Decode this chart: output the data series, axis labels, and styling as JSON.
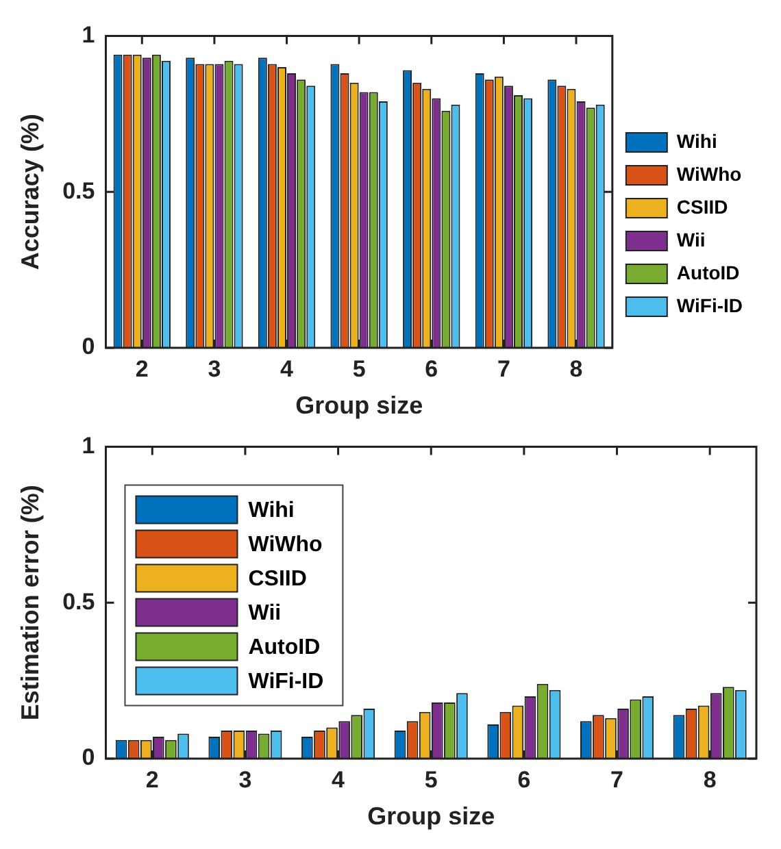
{
  "chart_data": [
    {
      "type": "bar",
      "xlabel": "Group size",
      "ylabel": "Accuracy (%)",
      "categories": [
        "2",
        "3",
        "4",
        "5",
        "6",
        "7",
        "8"
      ],
      "ylim": [
        0,
        1
      ],
      "yticks": [
        0,
        0.5,
        1
      ],
      "grid": false,
      "legend": "right",
      "series": [
        {
          "name": "Wihi",
          "color": "#0072bd",
          "values": [
            0.94,
            0.93,
            0.93,
            0.91,
            0.89,
            0.88,
            0.86
          ]
        },
        {
          "name": "WiWho",
          "color": "#d95319",
          "values": [
            0.94,
            0.91,
            0.91,
            0.88,
            0.85,
            0.86,
            0.84
          ]
        },
        {
          "name": "CSIID",
          "color": "#edb120",
          "values": [
            0.94,
            0.91,
            0.9,
            0.85,
            0.83,
            0.87,
            0.83
          ]
        },
        {
          "name": "Wii",
          "color": "#7e2f8e",
          "values": [
            0.93,
            0.91,
            0.88,
            0.82,
            0.8,
            0.84,
            0.79
          ]
        },
        {
          "name": "AutoID",
          "color": "#77ac30",
          "values": [
            0.94,
            0.92,
            0.86,
            0.82,
            0.76,
            0.81,
            0.77
          ]
        },
        {
          "name": "WiFi-ID",
          "color": "#4dbeee",
          "values": [
            0.92,
            0.91,
            0.84,
            0.79,
            0.78,
            0.8,
            0.78
          ]
        }
      ]
    },
    {
      "type": "bar",
      "xlabel": "Group size",
      "ylabel": "Estimation error (%)",
      "categories": [
        "2",
        "3",
        "4",
        "5",
        "6",
        "7",
        "8"
      ],
      "ylim": [
        0,
        1
      ],
      "yticks": [
        0,
        0.5,
        1
      ],
      "grid": false,
      "legend": "top left",
      "series": [
        {
          "name": "Wihi",
          "color": "#0072bd",
          "values": [
            0.06,
            0.07,
            0.07,
            0.09,
            0.11,
            0.12,
            0.14
          ]
        },
        {
          "name": "WiWho",
          "color": "#d95319",
          "values": [
            0.06,
            0.09,
            0.09,
            0.12,
            0.15,
            0.14,
            0.16
          ]
        },
        {
          "name": "CSIID",
          "color": "#edb120",
          "values": [
            0.06,
            0.09,
            0.1,
            0.15,
            0.17,
            0.13,
            0.17
          ]
        },
        {
          "name": "Wii",
          "color": "#7e2f8e",
          "values": [
            0.07,
            0.09,
            0.12,
            0.18,
            0.2,
            0.16,
            0.21
          ]
        },
        {
          "name": "AutoID",
          "color": "#77ac30",
          "values": [
            0.06,
            0.08,
            0.14,
            0.18,
            0.24,
            0.19,
            0.23
          ]
        },
        {
          "name": "WiFi-ID",
          "color": "#4dbeee",
          "values": [
            0.08,
            0.09,
            0.16,
            0.21,
            0.22,
            0.2,
            0.22
          ]
        }
      ]
    }
  ]
}
